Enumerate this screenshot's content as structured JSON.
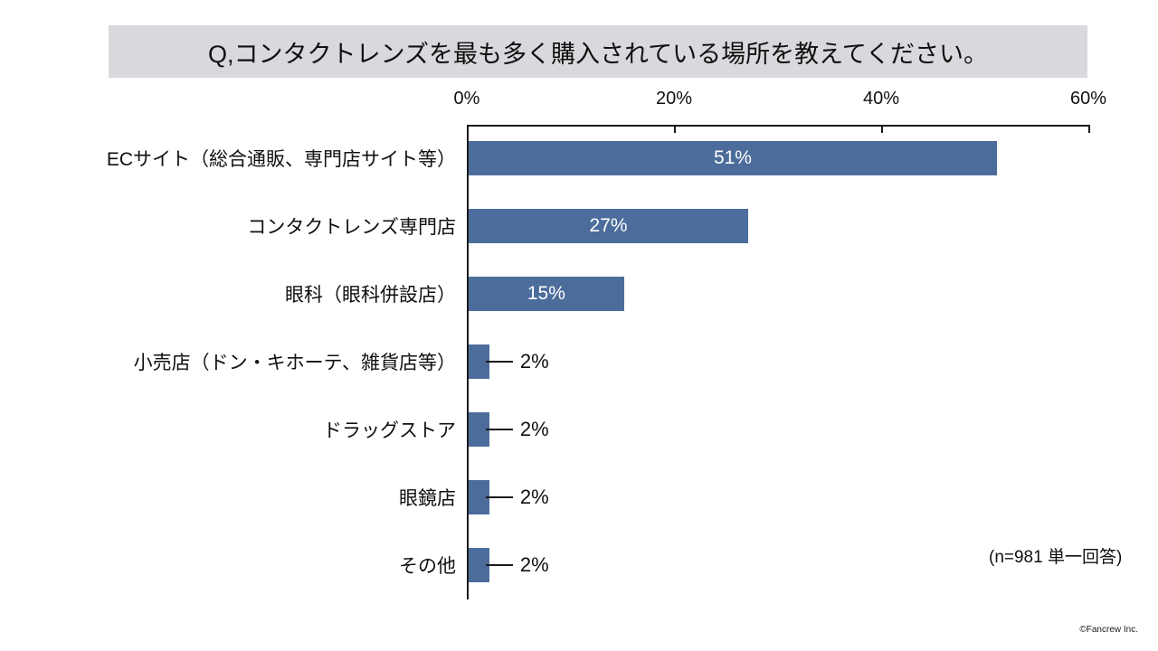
{
  "title": "Q,コンタクトレンズを最も多く購入されている場所を教えてください。",
  "chart_data": {
    "type": "bar",
    "orientation": "horizontal",
    "title": "Q,コンタクトレンズを最も多く購入されている場所を教えてください。",
    "categories": [
      "ECサイト（総合通販、専門店サイト等）",
      "コンタクトレンズ専門店",
      "眼科（眼科併設店）",
      "小売店（ドン・キホーテ、雑貨店等）",
      "ドラッグストア",
      "眼鏡店",
      "その他"
    ],
    "values": [
      51,
      27,
      15,
      2,
      2,
      2,
      2
    ],
    "value_labels": [
      "51%",
      "27%",
      "15%",
      "2%",
      "2%",
      "2%",
      "2%"
    ],
    "xlim": [
      0,
      60
    ],
    "axis_position": "top",
    "axis_ticks": [
      {
        "value": 0,
        "label": "0%"
      },
      {
        "value": 20,
        "label": "20%"
      },
      {
        "value": 40,
        "label": "40%"
      },
      {
        "value": 60,
        "label": "60%"
      }
    ],
    "grid": false,
    "legend": false,
    "bar_color": "#4C6D9B",
    "inside_label_color": "#FFFFFF",
    "outside_label_color": "#101010",
    "inside_label_min_value": 10
  },
  "annotation": "(n=981 単一回答)",
  "footer": "©Fancrew Inc.",
  "colors": {
    "title_bg": "#D7D9DC",
    "axis_line": "#1A1A1A",
    "background": "#FFFFFF"
  }
}
